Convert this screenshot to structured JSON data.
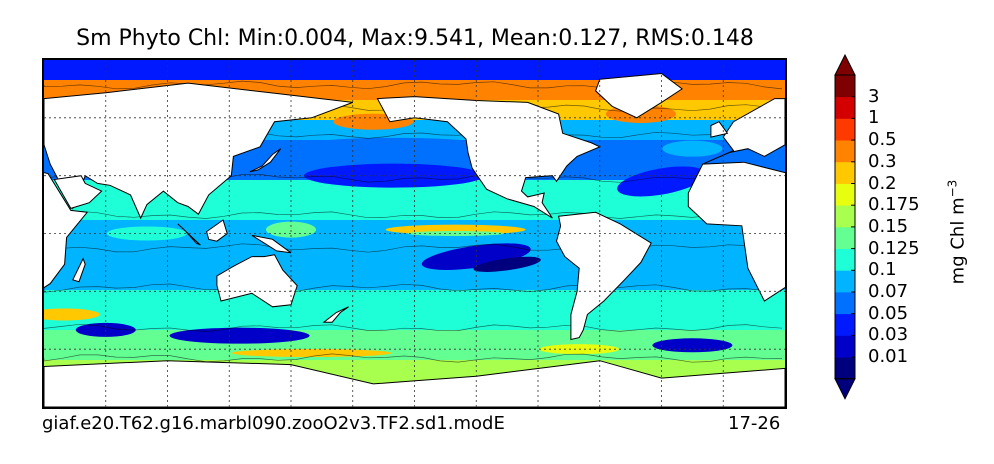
{
  "chart_data": {
    "type": "heatmap",
    "title": "Sm Phyto Chl: Min:0.004, Max:9.541, Mean:0.127, RMS:0.148",
    "stats": {
      "min": 0.004,
      "max": 9.541,
      "mean": 0.127,
      "rms": 0.148
    },
    "colorbar": {
      "label": "mg Chl m",
      "label_exponent": "−3",
      "extend": "both",
      "levels": [
        0.01,
        0.03,
        0.05,
        0.07,
        0.1,
        0.125,
        0.15,
        0.175,
        0.2,
        0.3,
        0.5,
        1,
        3
      ],
      "tick_labels": [
        "0.01",
        "0.03",
        "0.05",
        "0.07",
        "0.1",
        "0.125",
        "0.15",
        "0.175",
        "0.2",
        "0.3",
        "0.5",
        "1",
        "3"
      ],
      "colors": [
        "#00007f",
        "#0000c8",
        "#0019ff",
        "#0070ff",
        "#00b4ff",
        "#1effd8",
        "#63ff93",
        "#a8ff4e",
        "#e7ff0f",
        "#ffc800",
        "#ff8200",
        "#ff3a00",
        "#d40000",
        "#7f0000"
      ],
      "under_color": "#00007f",
      "over_color": "#7f0000"
    },
    "map": {
      "projection": "cylindrical, 30E-390E, 90S-90N",
      "gridlines": "dotted, 30° spacing",
      "land_color": "#ffffff"
    },
    "footer": {
      "case": "giaf.e20.T62.g16.marbl090.zooO2v3.TF2.sd1.modE",
      "period": "17-26"
    }
  }
}
